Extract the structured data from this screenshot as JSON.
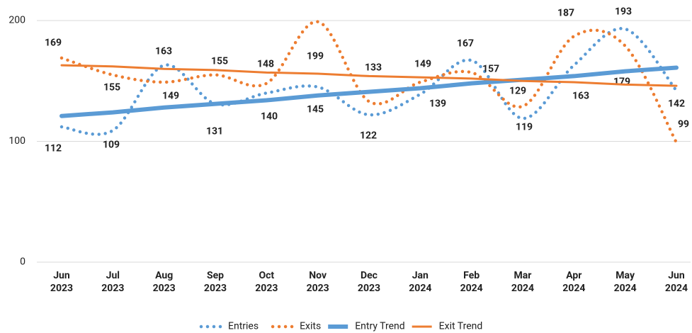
{
  "chart_data": {
    "type": "line",
    "categories": [
      "Jun 2023",
      "Jul 2023",
      "Aug 2023",
      "Sep 2023",
      "Oct 2023",
      "Nov 2023",
      "Dec 2023",
      "Jan 2024",
      "Feb 2024",
      "Mar 2024",
      "Apr 2024",
      "May 2024",
      "Jun 2024"
    ],
    "series": [
      {
        "name": "Entries",
        "color": "#5b9bd5",
        "style": "dotted",
        "values": [
          112,
          109,
          163,
          131,
          140,
          145,
          122,
          139,
          167,
          119,
          163,
          193,
          142
        ]
      },
      {
        "name": "Exits",
        "color": "#ed7d31",
        "style": "dotted",
        "values": [
          169,
          155,
          149,
          155,
          148,
          199,
          133,
          149,
          157,
          129,
          187,
          179,
          99
        ]
      },
      {
        "name": "Entry Trend",
        "color": "#5b9bd5",
        "style": "trend",
        "values": [
          121,
          124,
          128,
          131,
          134,
          138,
          141,
          144,
          148,
          151,
          154,
          158,
          161
        ]
      },
      {
        "name": "Exit Trend",
        "color": "#ed7d31",
        "style": "trend",
        "values": [
          163,
          162,
          160,
          159,
          157,
          156,
          154,
          153,
          152,
          150,
          149,
          147,
          146
        ]
      }
    ],
    "ylim": [
      0,
      200
    ],
    "yticks": [
      0,
      100,
      200
    ],
    "grid": true,
    "legend": "bottom"
  }
}
